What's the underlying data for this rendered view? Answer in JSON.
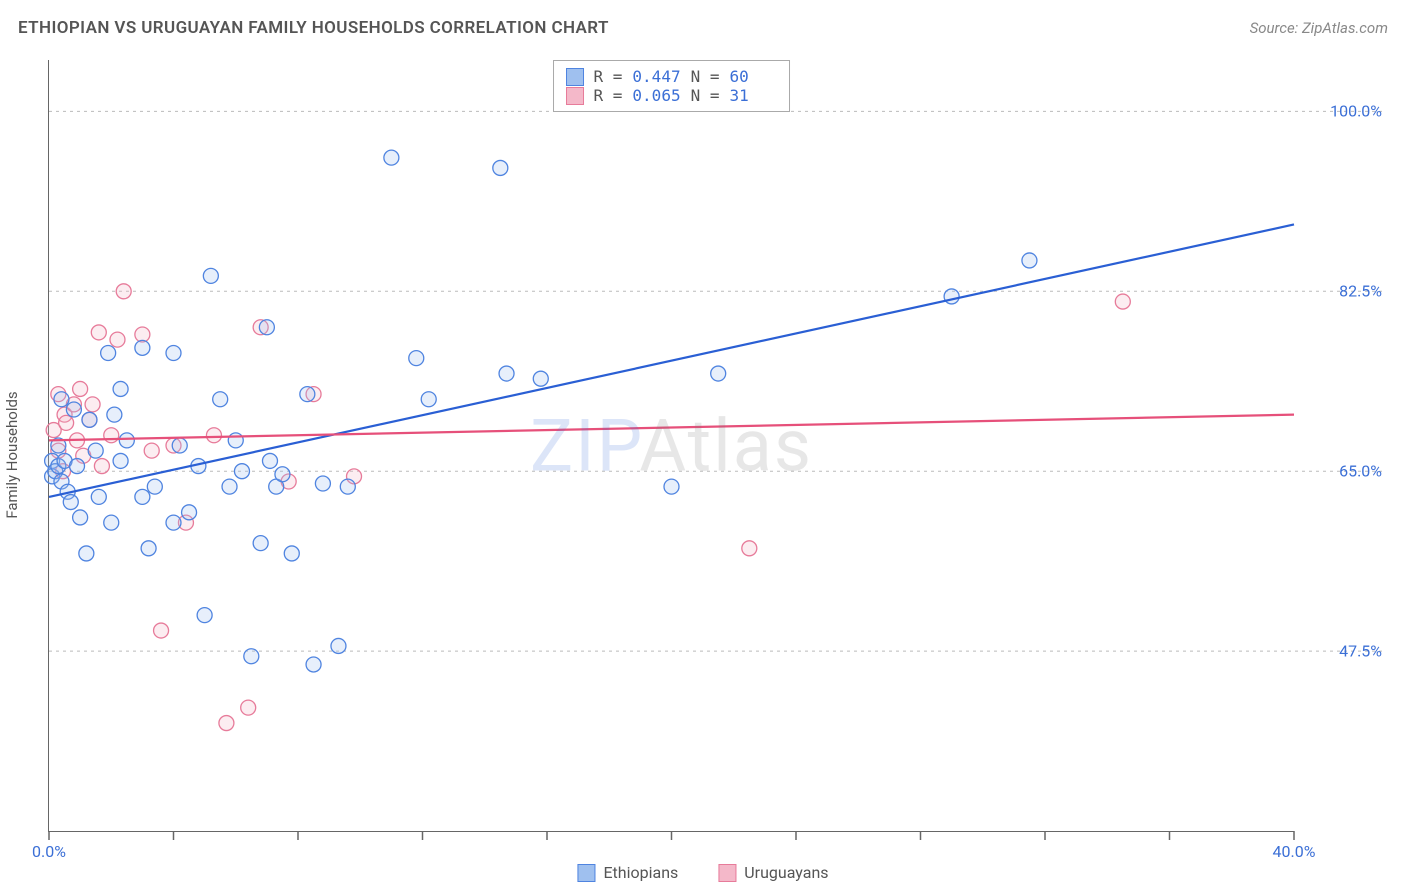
{
  "title": "ETHIOPIAN VS URUGUAYAN FAMILY HOUSEHOLDS CORRELATION CHART",
  "source": "Source: ZipAtlas.com",
  "ylabel": "Family Households",
  "watermark": {
    "part1": "ZIP",
    "part2": "Atlas"
  },
  "chart": {
    "type": "scatter",
    "xlim": [
      0,
      40
    ],
    "ylim": [
      30,
      105
    ],
    "x_ticks": [
      0,
      4,
      8,
      12,
      16,
      20,
      24,
      28,
      32,
      36,
      40
    ],
    "x_tick_labels": {
      "0": "0.0%",
      "40": "40.0%"
    },
    "y_gridlines": [
      47.5,
      65.0,
      82.5,
      100.0
    ],
    "y_tick_labels": [
      "47.5%",
      "65.0%",
      "82.5%",
      "100.0%"
    ],
    "background_color": "#ffffff",
    "grid_color": "#bbbbbb",
    "axis_color": "#666666",
    "tick_label_color": "#3b6fd6",
    "marker_radius": 7.5,
    "series": [
      {
        "name": "Ethiopians",
        "color_stroke": "#4f84e0",
        "color_fill": "#9fc0ef",
        "R": "0.447",
        "N": "60",
        "trend": {
          "x1": 0,
          "y1": 62.5,
          "x2": 40,
          "y2": 89.0,
          "stroke": "#2a5fd4",
          "width": 2.2
        },
        "points": [
          [
            0.1,
            64.5
          ],
          [
            0.1,
            66.0
          ],
          [
            0.2,
            65.0
          ],
          [
            0.3,
            65.5
          ],
          [
            0.3,
            67.5
          ],
          [
            0.4,
            64.0
          ],
          [
            0.4,
            72.0
          ],
          [
            0.5,
            66.0
          ],
          [
            0.6,
            63.0
          ],
          [
            0.7,
            62.0
          ],
          [
            0.8,
            71.0
          ],
          [
            0.9,
            65.5
          ],
          [
            1.0,
            60.5
          ],
          [
            1.2,
            57.0
          ],
          [
            1.3,
            70.0
          ],
          [
            1.5,
            67.0
          ],
          [
            1.6,
            62.5
          ],
          [
            1.9,
            76.5
          ],
          [
            2.0,
            60.0
          ],
          [
            2.1,
            70.5
          ],
          [
            2.3,
            73.0
          ],
          [
            2.3,
            66.0
          ],
          [
            2.5,
            68.0
          ],
          [
            3.0,
            62.5
          ],
          [
            3.0,
            77.0
          ],
          [
            3.2,
            57.5
          ],
          [
            3.4,
            63.5
          ],
          [
            4.0,
            60.0
          ],
          [
            4.0,
            76.5
          ],
          [
            4.2,
            67.5
          ],
          [
            4.5,
            61.0
          ],
          [
            4.8,
            65.5
          ],
          [
            5.0,
            51.0
          ],
          [
            5.2,
            84.0
          ],
          [
            5.5,
            72.0
          ],
          [
            5.8,
            63.5
          ],
          [
            6.0,
            68.0
          ],
          [
            6.2,
            65.0
          ],
          [
            6.5,
            47.0
          ],
          [
            6.8,
            58.0
          ],
          [
            7.0,
            79.0
          ],
          [
            7.1,
            66.0
          ],
          [
            7.3,
            63.5
          ],
          [
            7.5,
            64.7
          ],
          [
            7.8,
            57.0
          ],
          [
            8.3,
            72.5
          ],
          [
            8.5,
            46.2
          ],
          [
            8.8,
            63.8
          ],
          [
            9.3,
            48.0
          ],
          [
            9.6,
            63.5
          ],
          [
            11.0,
            95.5
          ],
          [
            11.8,
            76.0
          ],
          [
            12.2,
            72.0
          ],
          [
            14.5,
            94.5
          ],
          [
            14.7,
            74.5
          ],
          [
            15.8,
            74.0
          ],
          [
            20.0,
            63.5
          ],
          [
            21.5,
            74.5
          ],
          [
            29.0,
            82.0
          ],
          [
            31.5,
            85.5
          ]
        ]
      },
      {
        "name": "Uruguayans",
        "color_stroke": "#e77b9a",
        "color_fill": "#f4b8c9",
        "R": "0.065",
        "N": "31",
        "trend": {
          "x1": 0,
          "y1": 68.0,
          "x2": 40,
          "y2": 70.5,
          "stroke": "#e6507a",
          "width": 2.2
        },
        "points": [
          [
            0.15,
            69.0
          ],
          [
            0.3,
            67.0
          ],
          [
            0.3,
            72.5
          ],
          [
            0.45,
            65.0
          ],
          [
            0.5,
            70.5
          ],
          [
            0.55,
            69.7
          ],
          [
            0.8,
            71.5
          ],
          [
            0.9,
            68.0
          ],
          [
            1.0,
            73.0
          ],
          [
            1.1,
            66.5
          ],
          [
            1.3,
            70.0
          ],
          [
            1.4,
            71.5
          ],
          [
            1.6,
            78.5
          ],
          [
            1.7,
            65.5
          ],
          [
            2.0,
            68.5
          ],
          [
            2.2,
            77.8
          ],
          [
            2.4,
            82.5
          ],
          [
            3.0,
            78.3
          ],
          [
            3.3,
            67.0
          ],
          [
            3.6,
            49.5
          ],
          [
            4.0,
            67.5
          ],
          [
            4.4,
            60.0
          ],
          [
            5.3,
            68.5
          ],
          [
            5.7,
            40.5
          ],
          [
            6.4,
            42.0
          ],
          [
            6.8,
            79.0
          ],
          [
            7.7,
            64.0
          ],
          [
            8.5,
            72.5
          ],
          [
            9.8,
            64.5
          ],
          [
            22.5,
            57.5
          ],
          [
            34.5,
            81.5
          ]
        ]
      }
    ],
    "stats_legend": {
      "R_label": "R =",
      "N_label": "N ="
    },
    "bottom_legend_labels": [
      "Ethiopians",
      "Uruguayans"
    ]
  }
}
